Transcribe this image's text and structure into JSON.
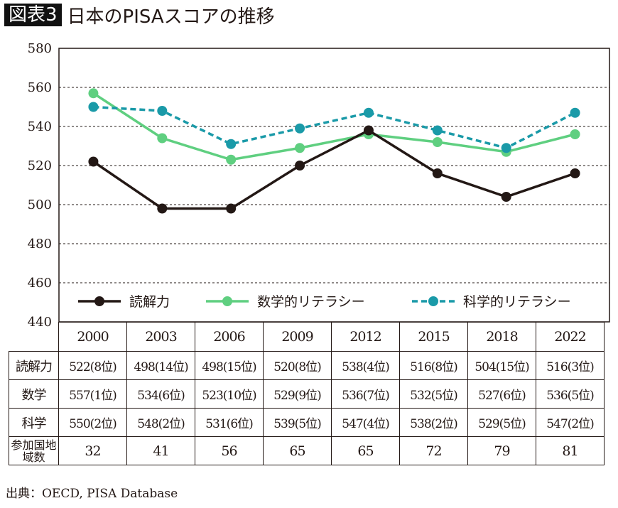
{
  "title": {
    "badge": "図表3",
    "text": "日本のPISAスコアの推移"
  },
  "chart_data": {
    "type": "line",
    "categories": [
      "2000",
      "2003",
      "2006",
      "2009",
      "2012",
      "2015",
      "2018",
      "2022"
    ],
    "ylim": [
      440,
      580
    ],
    "yticks": [
      "440",
      "460",
      "480",
      "500",
      "520",
      "540",
      "560",
      "580"
    ],
    "grid": "horizontal dashed",
    "legend_placement": "bottom",
    "series": [
      {
        "name": "読解力",
        "values": [
          522,
          498,
          498,
          520,
          538,
          516,
          504,
          516
        ],
        "color": "#231815",
        "style": "solid"
      },
      {
        "name": "数学的リテラシー",
        "values": [
          557,
          534,
          523,
          529,
          536,
          532,
          527,
          536
        ],
        "color": "#5fcf80",
        "style": "solid"
      },
      {
        "name": "科学的リテラシー",
        "values": [
          550,
          548,
          531,
          539,
          547,
          538,
          529,
          547
        ],
        "color": "#1a9aa8",
        "style": "dashed"
      }
    ]
  },
  "table": {
    "rows": [
      {
        "label": "読解力",
        "cells": [
          "522(8位)",
          "498(14位)",
          "498(15位)",
          "520(8位)",
          "538(4位)",
          "516(8位)",
          "504(15位)",
          "516(3位)"
        ]
      },
      {
        "label": "数学",
        "cells": [
          "557(1位)",
          "534(6位)",
          "523(10位)",
          "529(9位)",
          "536(7位)",
          "532(5位)",
          "527(6位)",
          "536(5位)"
        ]
      },
      {
        "label": "科学",
        "cells": [
          "550(2位)",
          "548(2位)",
          "531(6位)",
          "539(5位)",
          "547(4位)",
          "538(2位)",
          "529(5位)",
          "547(2位)"
        ]
      },
      {
        "label": "参加国地域数",
        "cells": [
          "32",
          "41",
          "56",
          "65",
          "65",
          "72",
          "79",
          "81"
        ]
      }
    ]
  },
  "source": "出典：OECD, PISA Database"
}
